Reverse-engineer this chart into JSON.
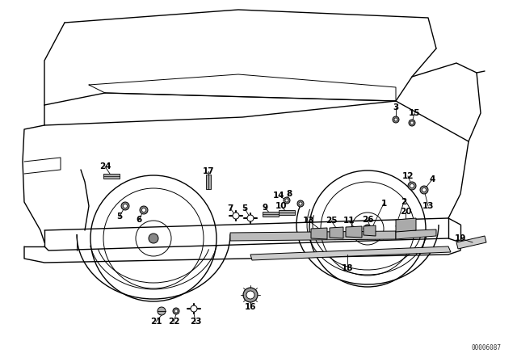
{
  "bg_color": "#ffffff",
  "line_color": "#000000",
  "watermark": "00006087",
  "fig_width": 6.4,
  "fig_height": 4.48,
  "dpi": 100
}
